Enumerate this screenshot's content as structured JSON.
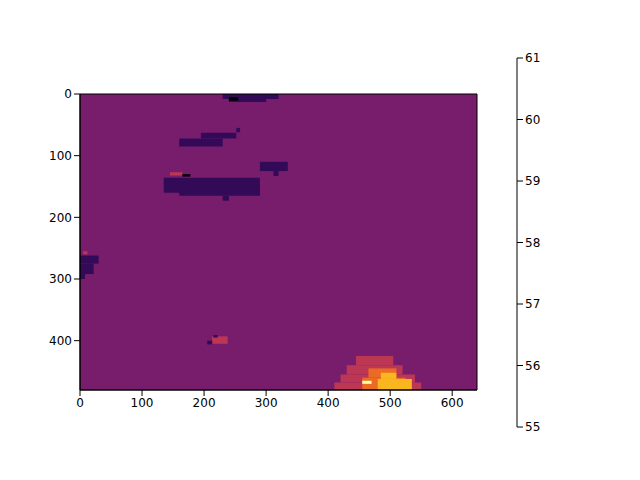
{
  "chart_data": {
    "type": "heatmap",
    "xlim": [
      0,
      640
    ],
    "ylim": [
      0,
      480
    ],
    "xticks": [
      0,
      100,
      200,
      300,
      400,
      500,
      600
    ],
    "yticks": [
      0,
      100,
      200,
      300,
      400
    ],
    "colorbar": {
      "range": [
        55,
        61
      ],
      "ticks": [
        55,
        56,
        57,
        58,
        59,
        60,
        61
      ]
    },
    "cells": [
      {
        "x": [
          0,
          640
        ],
        "y": [
          0,
          480
        ],
        "value": 57
      },
      {
        "x": [
          230,
          320
        ],
        "y": [
          0,
          8
        ],
        "value": 56
      },
      {
        "x": [
          240,
          300
        ],
        "y": [
          8,
          13
        ],
        "value": 56
      },
      {
        "x": [
          240,
          255
        ],
        "y": [
          5,
          11
        ],
        "value": 55
      },
      {
        "x": [
          195,
          252
        ],
        "y": [
          63,
          72
        ],
        "value": 56
      },
      {
        "x": [
          160,
          230
        ],
        "y": [
          72,
          85
        ],
        "value": 56
      },
      {
        "x": [
          252,
          258
        ],
        "y": [
          55,
          62
        ],
        "value": 56
      },
      {
        "x": [
          135,
          290
        ],
        "y": [
          136,
          160
        ],
        "value": 56
      },
      {
        "x": [
          160,
          290
        ],
        "y": [
          150,
          165
        ],
        "value": 56
      },
      {
        "x": [
          230,
          240
        ],
        "y": [
          165,
          173
        ],
        "value": 56
      },
      {
        "x": [
          145,
          165
        ],
        "y": [
          127,
          132
        ],
        "value": 58
      },
      {
        "x": [
          165,
          178
        ],
        "y": [
          130,
          134
        ],
        "value": 55
      },
      {
        "x": [
          290,
          335
        ],
        "y": [
          110,
          125
        ],
        "value": 56
      },
      {
        "x": [
          312,
          320
        ],
        "y": [
          125,
          133
        ],
        "value": 56
      },
      {
        "x": [
          0,
          30
        ],
        "y": [
          262,
          275
        ],
        "value": 56
      },
      {
        "x": [
          0,
          22
        ],
        "y": [
          275,
          292
        ],
        "value": 56
      },
      {
        "x": [
          0,
          8
        ],
        "y": [
          292,
          300
        ],
        "value": 56
      },
      {
        "x": [
          5,
          12
        ],
        "y": [
          255,
          260
        ],
        "value": 58
      },
      {
        "x": [
          213,
          238
        ],
        "y": [
          393,
          405
        ],
        "value": 58
      },
      {
        "x": [
          205,
          213
        ],
        "y": [
          400,
          406
        ],
        "value": 56
      },
      {
        "x": [
          215,
          222
        ],
        "y": [
          391,
          395
        ],
        "value": 56
      },
      {
        "x": [
          410,
          550
        ],
        "y": [
          468,
          480
        ],
        "value": 58
      },
      {
        "x": [
          420,
          540
        ],
        "y": [
          455,
          468
        ],
        "value": 58
      },
      {
        "x": [
          430,
          520
        ],
        "y": [
          440,
          455
        ],
        "value": 58
      },
      {
        "x": [
          445,
          505
        ],
        "y": [
          425,
          440
        ],
        "value": 58
      },
      {
        "x": [
          455,
          525
        ],
        "y": [
          460,
          480
        ],
        "value": 59
      },
      {
        "x": [
          465,
          510
        ],
        "y": [
          445,
          460
        ],
        "value": 59
      },
      {
        "x": [
          480,
          535
        ],
        "y": [
          462,
          480
        ],
        "value": 60
      },
      {
        "x": [
          485,
          510
        ],
        "y": [
          452,
          462
        ],
        "value": 60
      },
      {
        "x": [
          455,
          470
        ],
        "y": [
          465,
          470
        ],
        "value": 61
      }
    ]
  }
}
